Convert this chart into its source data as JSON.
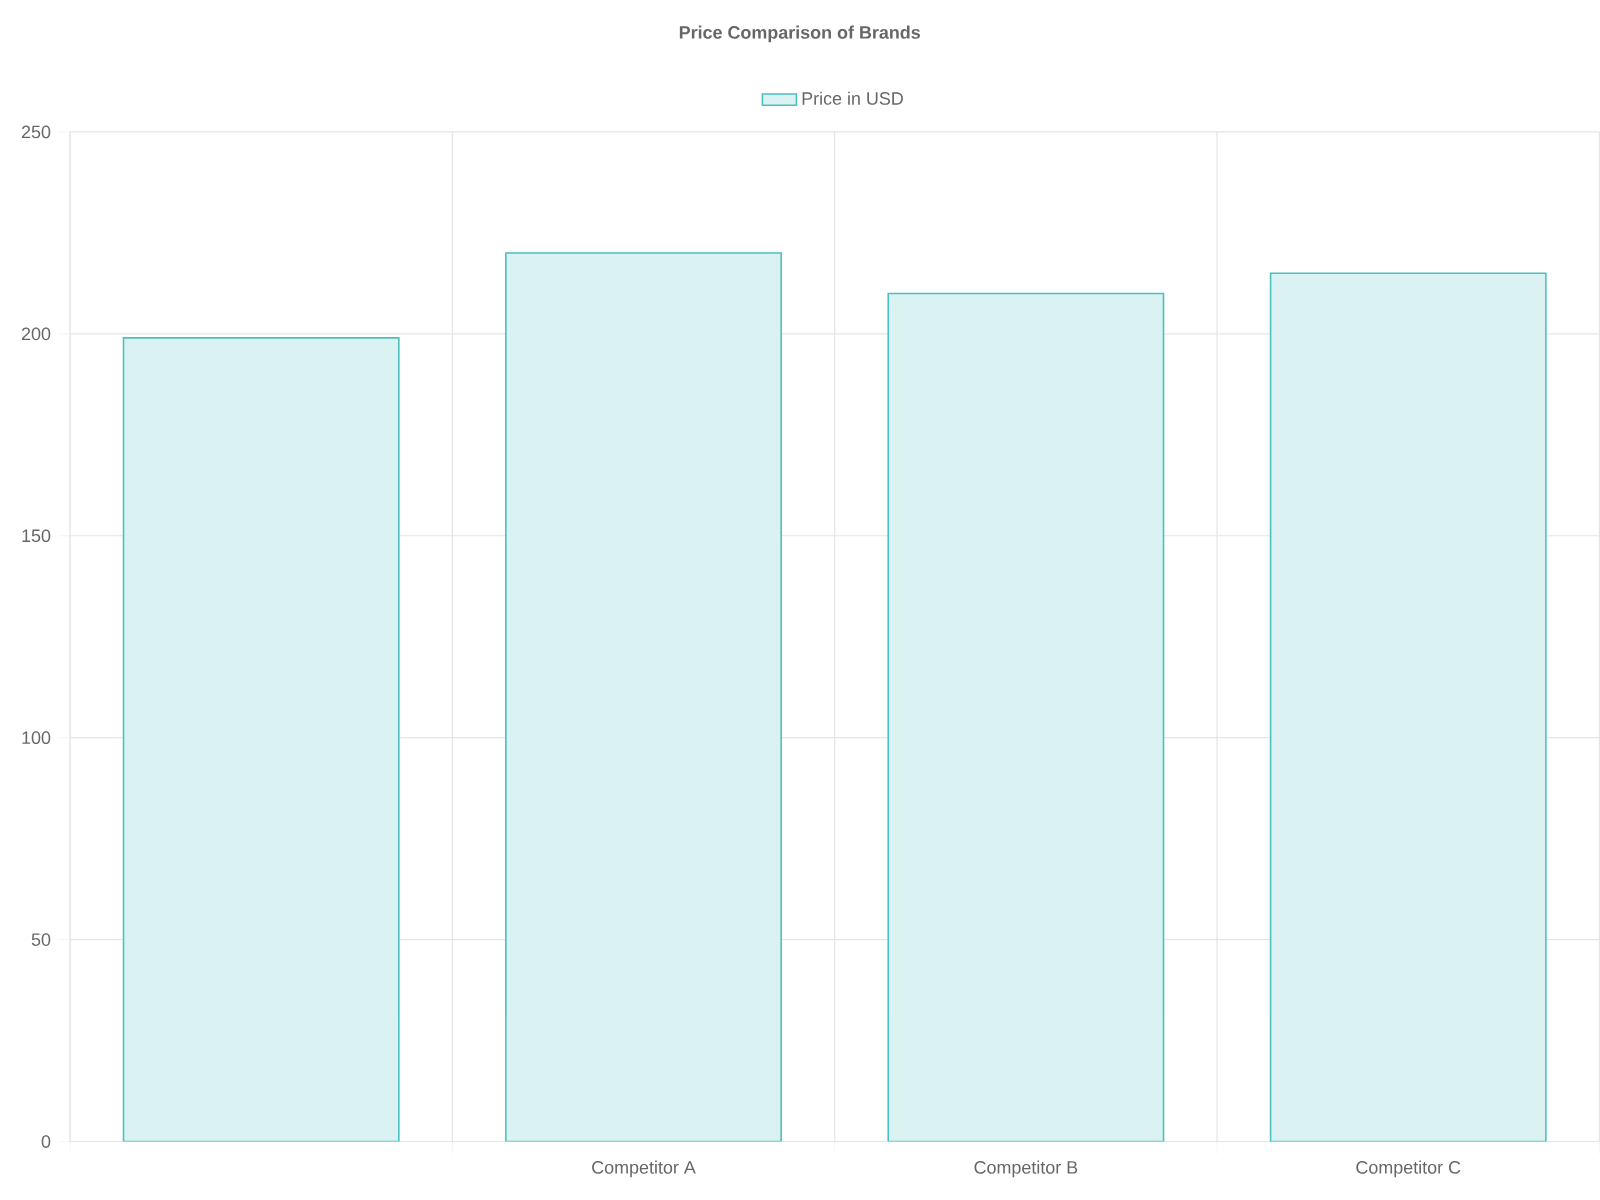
{
  "chart_data": {
    "type": "bar",
    "title": "Price Comparison of Brands",
    "categories": [
      null,
      "Competitor A",
      "Competitor B",
      "Competitor C"
    ],
    "series": [
      {
        "name": "Price in USD",
        "color": "#4bc0c0",
        "values": [
          199,
          220,
          210,
          215
        ]
      }
    ],
    "ylim": [
      0,
      250
    ],
    "yticks": [
      0,
      50,
      100,
      150,
      200,
      250
    ],
    "grid": true,
    "legend": "top"
  }
}
